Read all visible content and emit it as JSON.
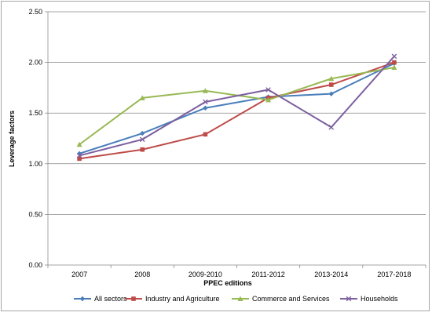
{
  "chart_data": {
    "type": "line",
    "title": "",
    "xlabel": "PPEC editions",
    "ylabel": "Leverage factors",
    "categories": [
      "2007",
      "2008",
      "2009-2010",
      "2011-2012",
      "2013-2014",
      "2017-2018"
    ],
    "ylim": [
      0,
      2.5
    ],
    "yticks": [
      "0.00",
      "0.50",
      "1.00",
      "1.50",
      "2.00",
      "2.50"
    ],
    "grid": "horizontal",
    "legend_position": "bottom",
    "series": [
      {
        "name": "All sectors",
        "color": "#4a7ebb",
        "marker": "diamond",
        "values": [
          1.1,
          1.3,
          1.55,
          1.66,
          1.69,
          1.99
        ]
      },
      {
        "name": "Industry and Agriculture",
        "color": "#be4b48",
        "marker": "square",
        "values": [
          1.05,
          1.14,
          1.29,
          1.65,
          1.78,
          2.0
        ]
      },
      {
        "name": "Commerce and Services",
        "color": "#98b954",
        "marker": "triangle",
        "values": [
          1.19,
          1.65,
          1.72,
          1.63,
          1.84,
          1.95
        ]
      },
      {
        "name": "Households",
        "color": "#7d60a0",
        "marker": "x",
        "values": [
          1.08,
          1.24,
          1.61,
          1.73,
          1.36,
          2.06
        ]
      }
    ]
  }
}
